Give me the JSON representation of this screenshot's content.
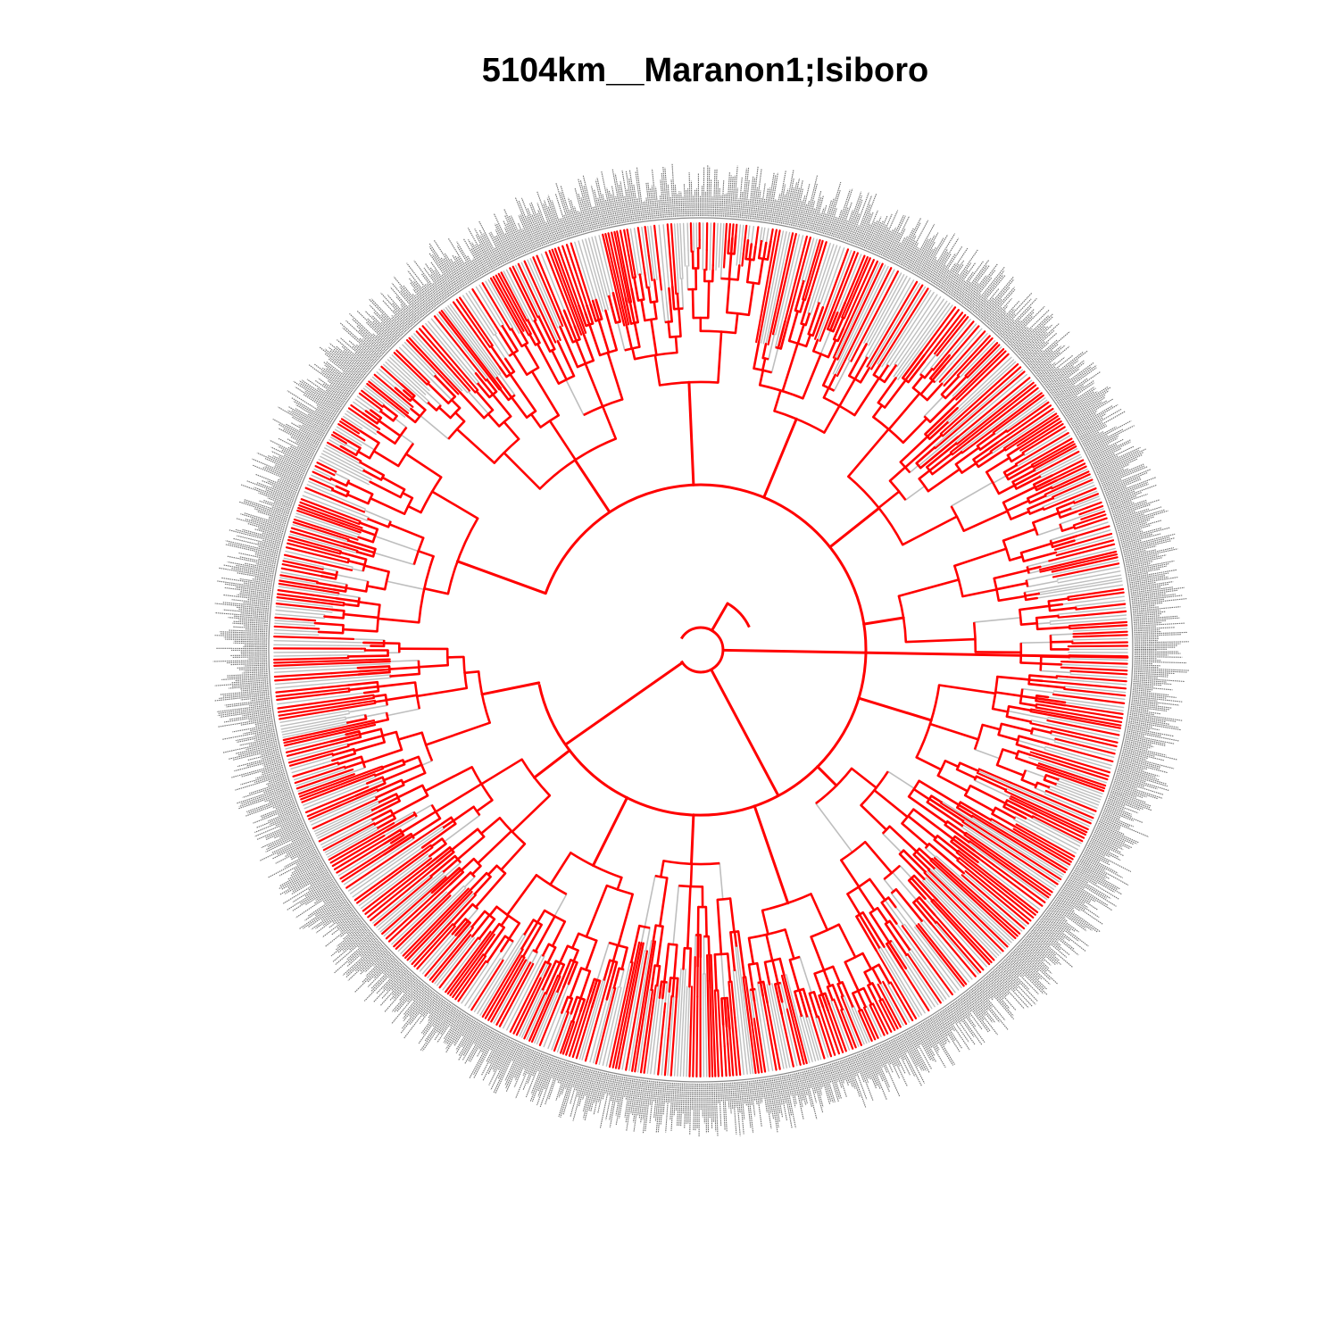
{
  "title": "5104km__Maranon1;Isiboro",
  "colors": {
    "highlight": "#ff0000",
    "background_branch": "#bebebe",
    "tip_label": "#555555",
    "title": "#000000"
  },
  "chart_data": {
    "type": "circular-phylogeny",
    "title": "5104km__Maranon1;Isiboro",
    "highlighted_color": "red",
    "other_color": "grey"
  }
}
